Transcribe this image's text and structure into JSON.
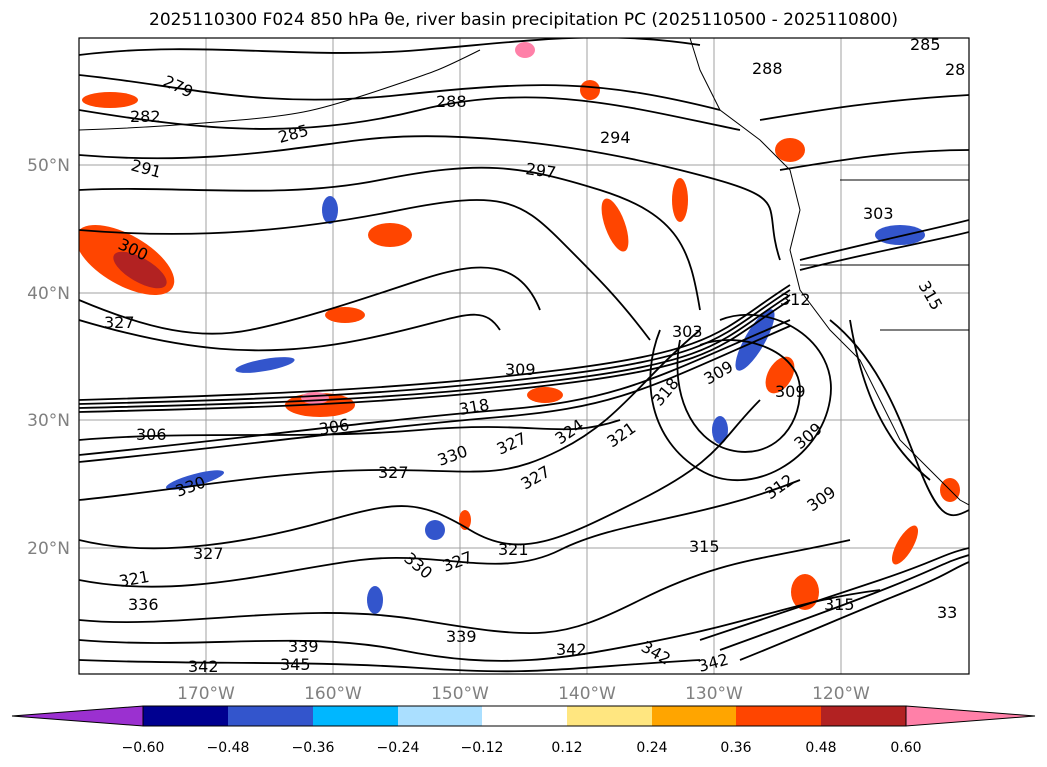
{
  "title": "2025110300 F024 850 hPa θe, river basin precipitation PC (2025110500 - 2025110800)",
  "map": {
    "lat_labels": [
      "50°N",
      "40°N",
      "30°N",
      "20°N"
    ],
    "lon_labels": [
      "170°W",
      "160°W",
      "150°W",
      "140°W",
      "130°W",
      "120°W"
    ],
    "contour_labels": [
      "285",
      "288",
      "28",
      "279",
      "282",
      "288",
      "285",
      "294",
      "291",
      "297",
      "303",
      "300",
      "327",
      "315",
      "309",
      "303",
      "312",
      "309",
      "306",
      "318",
      "309",
      "318",
      "306",
      "309",
      "327",
      "324",
      "321",
      "330",
      "327",
      "330",
      "327",
      "321",
      "309",
      "312",
      "327",
      "330",
      "327",
      "321",
      "315",
      "336",
      "315",
      "339",
      "342",
      "342",
      "342",
      "339",
      "33",
      "342",
      "345"
    ],
    "colors": {
      "contour": "#000000",
      "grid": "#a0a0a0",
      "land": "#ffffff"
    }
  },
  "colorbar": {
    "ticks": [
      "−0.60",
      "−0.48",
      "−0.36",
      "−0.24",
      "−0.12",
      "0.12",
      "0.24",
      "0.36",
      "0.48",
      "0.60"
    ],
    "colors": [
      "#9b30d0",
      "#000090",
      "#3355cc",
      "#00b7ff",
      "#aadfff",
      "#ffffff",
      "#ffe680",
      "#ffa500",
      "#ff4500",
      "#b22222",
      "#ff80a8"
    ]
  }
}
